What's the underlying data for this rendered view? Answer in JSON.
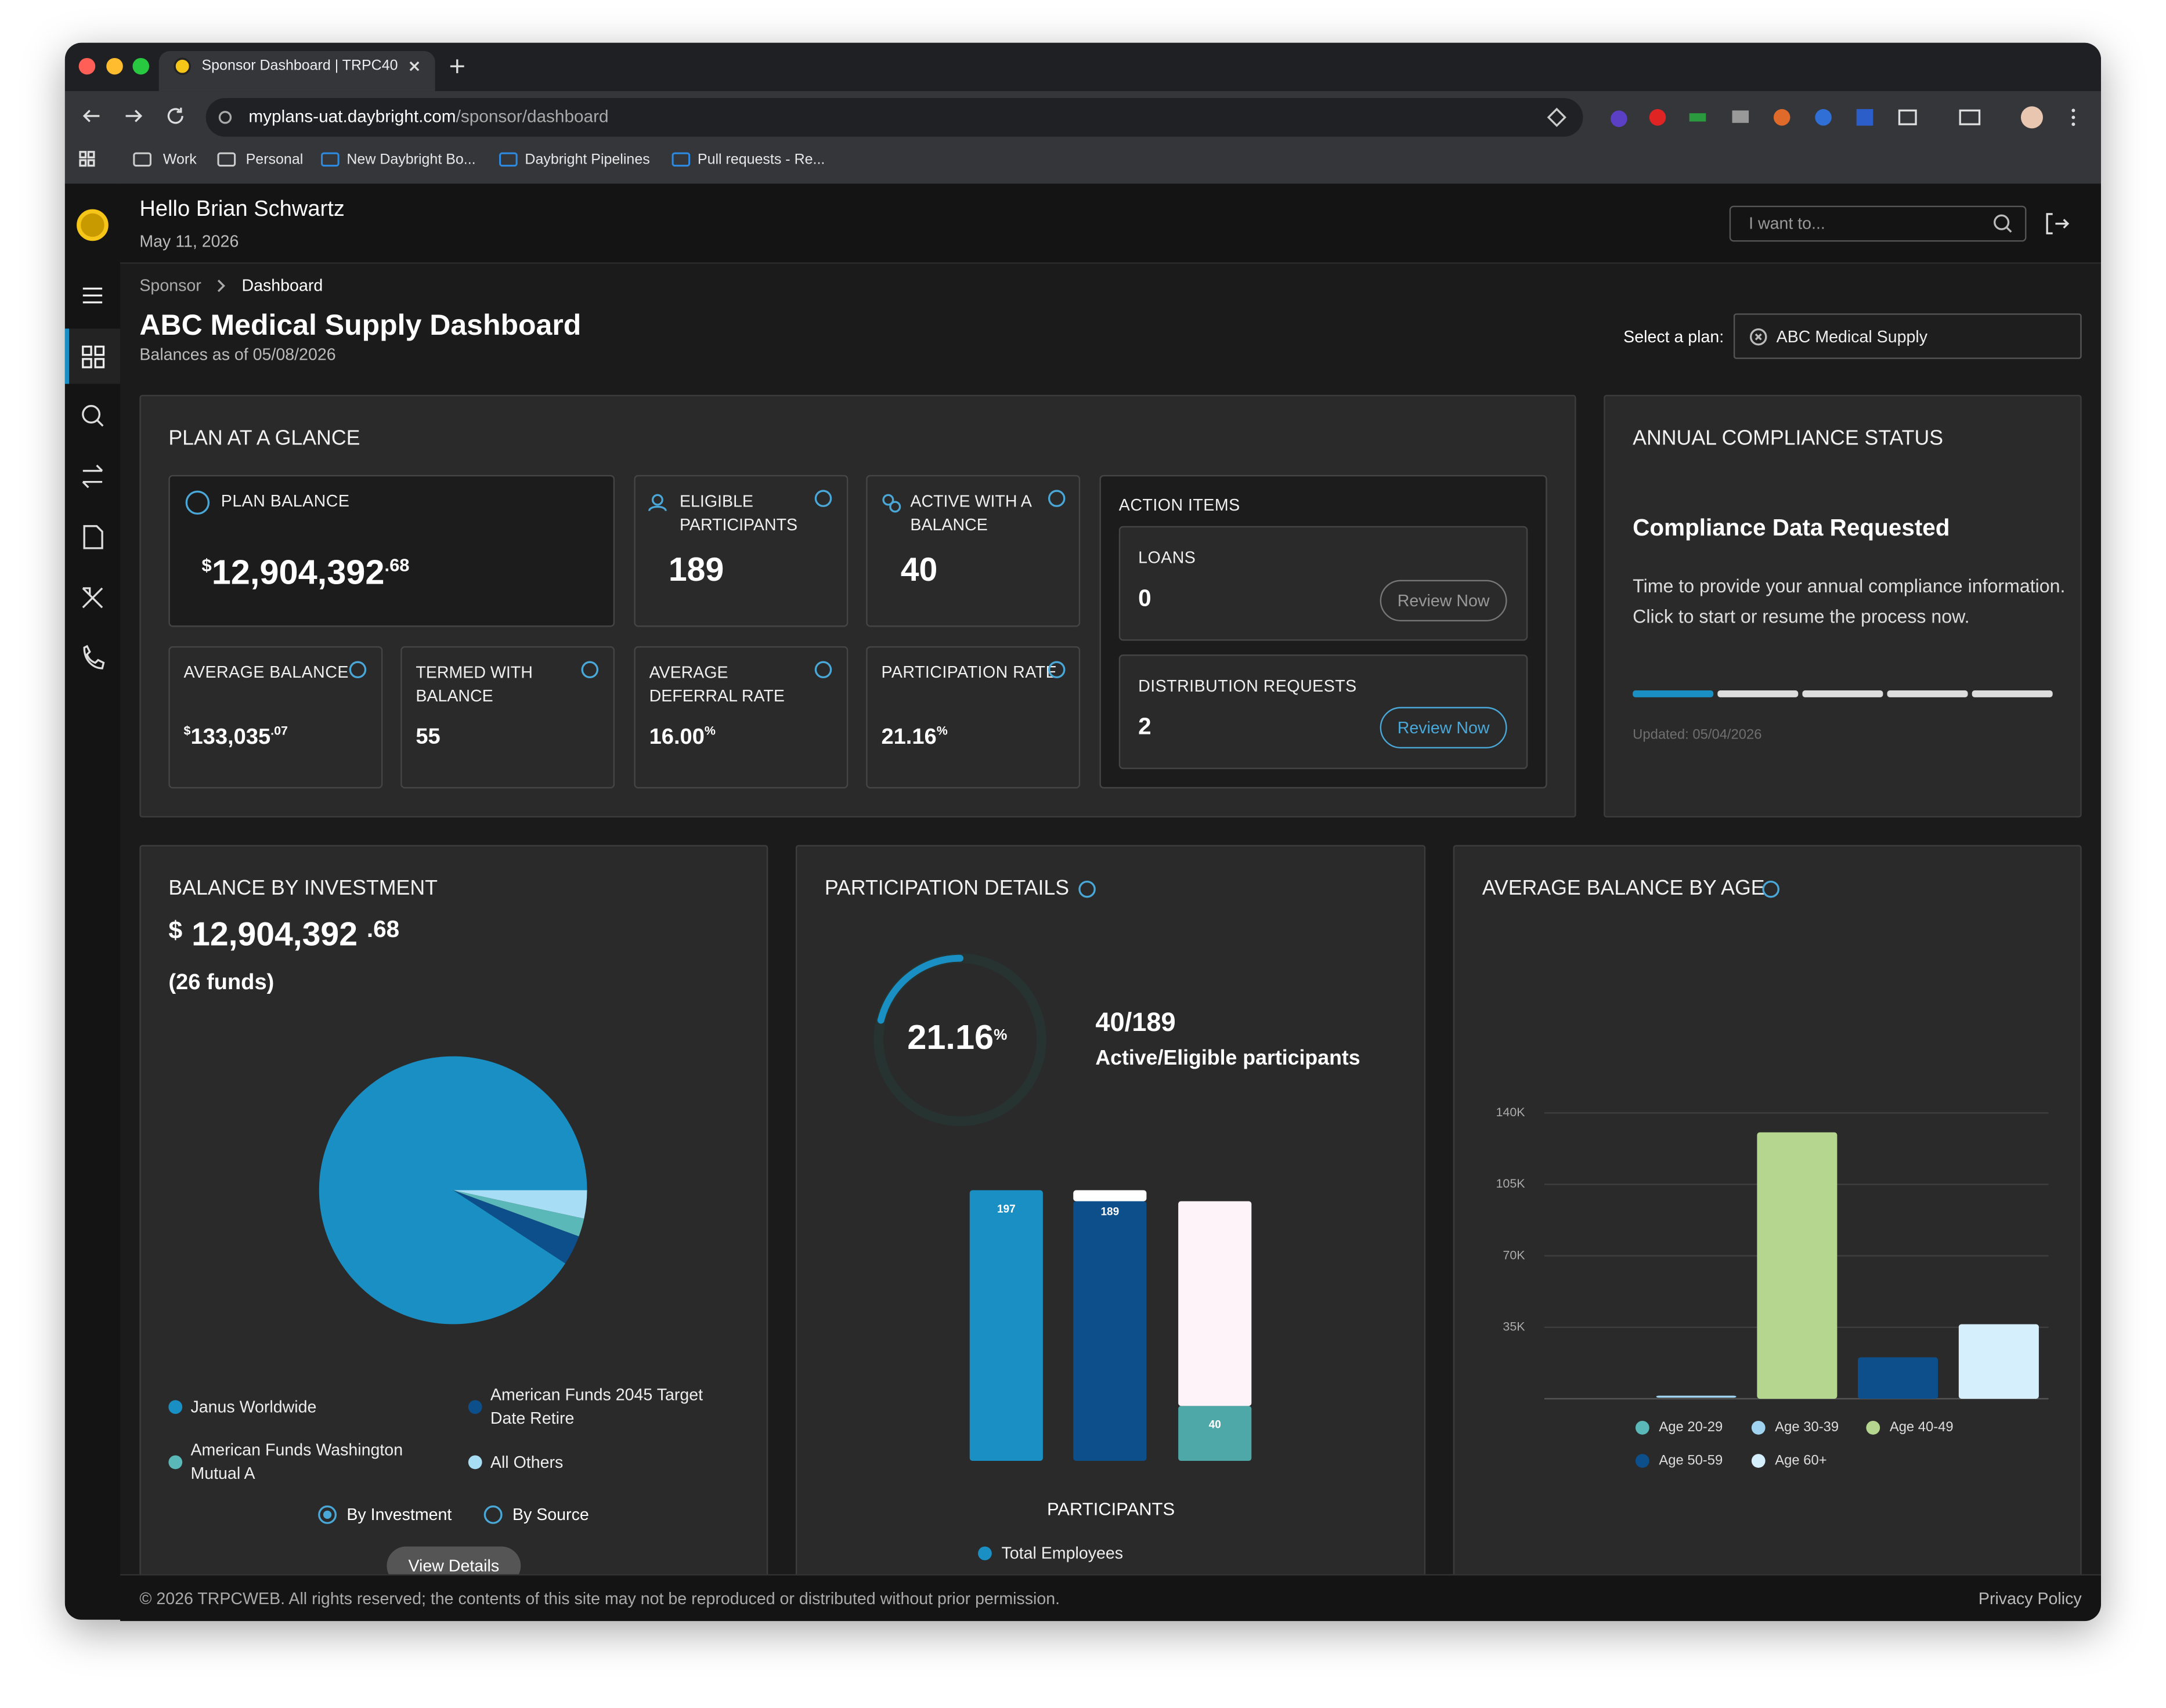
{
  "browser": {
    "tab_title": "Sponsor Dashboard | TRPC40",
    "url_host": "myplans-uat.daybright.com",
    "url_path": "/sponsor/dashboard",
    "bookmarks": [
      "Work",
      "Personal",
      "New Daybright Bo...",
      "Daybright Pipelines",
      "Pull requests - Re..."
    ]
  },
  "header": {
    "greeting": "Hello Brian Schwartz",
    "date": "May 11, 2026",
    "search_placeholder": "I want to..."
  },
  "breadcrumb": [
    "Sponsor",
    "Dashboard"
  ],
  "page": {
    "title": "ABC Medical Supply Dashboard",
    "subtitle": "Balances as of 05/08/2026",
    "plan_label": "Select a plan:",
    "plan_value": "ABC Medical Supply"
  },
  "glance": {
    "title": "PLAN AT A GLANCE",
    "plan_balance": {
      "label": "PLAN BALANCE",
      "currency": "$",
      "whole": "12,904,392",
      "cents": ".68"
    },
    "eligible": {
      "label": "ELIGIBLE PARTICIPANTS",
      "value": "189"
    },
    "active": {
      "label": "ACTIVE WITH A BALANCE",
      "value": "40"
    },
    "average_balance": {
      "label": "AVERAGE BALANCE",
      "currency": "$",
      "whole": "133,035",
      "cents": ".07"
    },
    "termed": {
      "label": "TERMED WITH BALANCE",
      "value": "55"
    },
    "deferral": {
      "label": "AVERAGE DEFERRAL RATE",
      "value": "16.00",
      "unit": "%"
    },
    "participation": {
      "label": "PARTICIPATION RATE",
      "value": "21.16",
      "unit": "%"
    },
    "action_items": {
      "title": "ACTION ITEMS",
      "items": [
        {
          "label": "LOANS",
          "count": "0",
          "button": "Review Now"
        },
        {
          "label": "DISTRIBUTION REQUESTS",
          "count": "2",
          "button": "Review Now"
        }
      ]
    }
  },
  "compliance": {
    "title": "ANNUAL COMPLIANCE STATUS",
    "heading": "Compliance Data Requested",
    "text": "Time to provide your annual compliance information. Click to start or resume the process now.",
    "steps_total": 5,
    "steps_done": 1,
    "updated": "Updated: 05/04/2026"
  },
  "investment": {
    "title": "BALANCE BY INVESTMENT",
    "currency": "$",
    "whole": "12,904,392",
    "cents": ".68",
    "funds": "(26 funds)",
    "chart_data": {
      "type": "pie",
      "categories": [
        "Janus Worldwide",
        "American Funds 2045 Target Date Retire",
        "American Funds Washington Mutual A",
        "All Others"
      ],
      "values": [
        90.8,
        3.6,
        2.2,
        3.4
      ],
      "colors": [
        "#1a8fc4",
        "#0d4f8b",
        "#5bb8b8",
        "#a8def5"
      ]
    },
    "options": [
      "By Investment",
      "By Source"
    ],
    "button": "View Details"
  },
  "participation": {
    "title": "PARTICIPATION DETAILS",
    "rate": 21.16,
    "rate_unit": "%",
    "ratio": "40/189",
    "ratio_label": "Active/Eligible participants",
    "chart_data": {
      "type": "stacked_bar",
      "x_label": "PARTICIPANTS",
      "series": [
        {
          "name": "Total Employees",
          "color": "#1a8fc4",
          "values": [
            197,
            null,
            null
          ]
        },
        {
          "color": "#0d4f8b",
          "values": [
            null,
            189,
            null
          ]
        },
        {
          "color": "#ffffff",
          "values": [
            null,
            8,
            null
          ]
        },
        {
          "color": "#4fa8a8",
          "values": [
            null,
            null,
            40
          ]
        },
        {
          "color": "#fdf3f8",
          "values": [
            null,
            null,
            149
          ]
        }
      ]
    }
  },
  "age": {
    "title": "AVERAGE BALANCE BY AGE",
    "chart_data": {
      "type": "bar",
      "categories": [
        "Age 20-29",
        "Age 30-39",
        "Age 40-49",
        "Age 50-59",
        "Age 60+"
      ],
      "values": [
        0,
        500,
        130500,
        20300,
        36500
      ],
      "colors": [
        "#5bb8b8",
        "#9fd3f0",
        "#b5d68f",
        "#0d4f8b",
        "#d6effc"
      ],
      "ylim": [
        0,
        140000
      ],
      "yticks": [
        {
          "value": 35000,
          "label": "35K"
        },
        {
          "value": 70000,
          "label": "70K"
        },
        {
          "value": 105000,
          "label": "105K"
        },
        {
          "value": 140000,
          "label": "140K"
        }
      ],
      "grid": true
    }
  },
  "footer": {
    "copyright": "© 2026 TRPCWEB. All rights reserved; the contents of this site may not be reproduced or distributed without prior permission.",
    "privacy": "Privacy Policy"
  }
}
